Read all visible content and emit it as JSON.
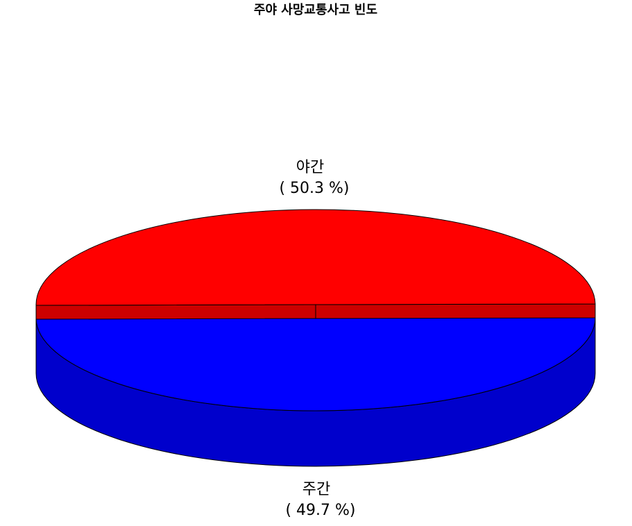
{
  "chart_data": {
    "type": "pie",
    "title": "주야 사망교통사고 빈도",
    "slices": [
      {
        "label": "야간",
        "value": 50.3,
        "value_text": "( 50.3 %)",
        "color": "#ff0000",
        "side_color": "#cc0000"
      },
      {
        "label": "주간",
        "value": 49.7,
        "value_text": "( 49.7 %)",
        "color": "#0000ff",
        "side_color": "#0000cc"
      }
    ],
    "style": "3d-tilted"
  }
}
